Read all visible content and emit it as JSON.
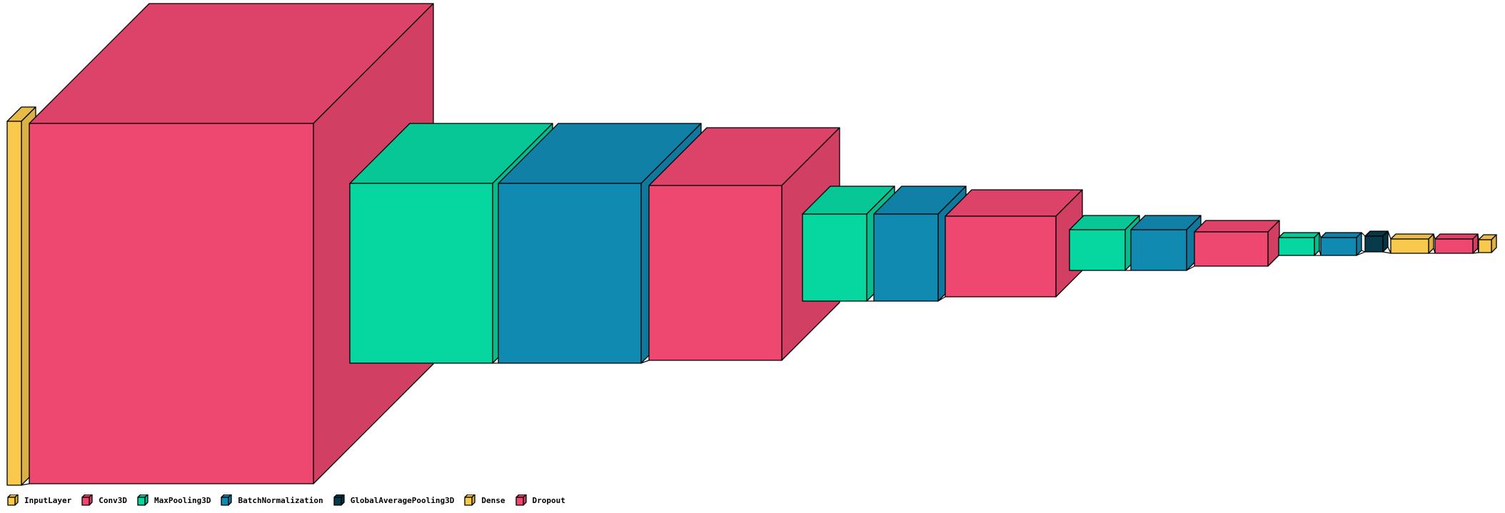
{
  "colors": {
    "InputLayer": "#f9c94e",
    "Conv3D": "#ee4870",
    "MaxPooling3D": "#06d6a0",
    "BatchNormalization": "#118ab2",
    "GlobalAveragePooling3D": "#073b4c",
    "Dense": "#f9c94e",
    "Dropout": "#ee4870"
  },
  "layers": [
    {
      "type": "InputLayer"
    },
    {
      "type": "Conv3D"
    },
    {
      "type": "MaxPooling3D"
    },
    {
      "type": "BatchNormalization"
    },
    {
      "type": "Conv3D"
    },
    {
      "type": "MaxPooling3D"
    },
    {
      "type": "BatchNormalization"
    },
    {
      "type": "Conv3D"
    },
    {
      "type": "MaxPooling3D"
    },
    {
      "type": "BatchNormalization"
    },
    {
      "type": "Conv3D"
    },
    {
      "type": "MaxPooling3D"
    },
    {
      "type": "BatchNormalization"
    },
    {
      "type": "GlobalAveragePooling3D"
    },
    {
      "type": "Dense"
    },
    {
      "type": "Dropout"
    },
    {
      "type": "Dense"
    }
  ],
  "legend": {
    "items": [
      {
        "type": "InputLayer",
        "label": "InputLayer"
      },
      {
        "type": "Conv3D",
        "label": "Conv3D"
      },
      {
        "type": "MaxPooling3D",
        "label": "MaxPooling3D"
      },
      {
        "type": "BatchNormalization",
        "label": "BatchNormalization"
      },
      {
        "type": "GlobalAveragePooling3D",
        "label": "GlobalAveragePooling3D"
      },
      {
        "type": "Dense",
        "label": "Dense"
      },
      {
        "type": "Dropout",
        "label": "Dropout"
      }
    ]
  }
}
